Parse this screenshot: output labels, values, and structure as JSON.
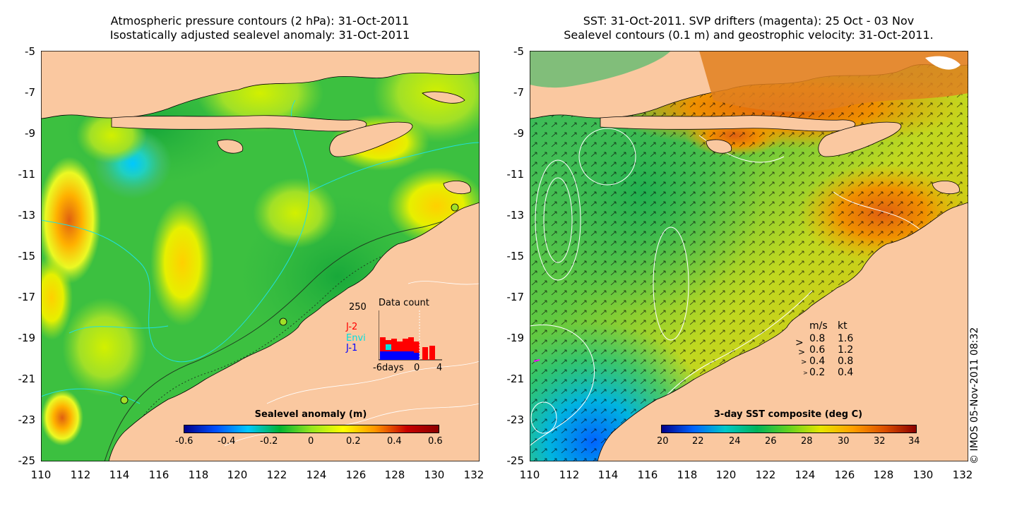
{
  "left_panel": {
    "title_line1": "Atmospheric pressure contours (2 hPa): 31-Oct-2011",
    "title_line2": "Isostatically adjusted sealevel anomaly: 31-Oct-2011",
    "colorbar_label": "Sealevel anomaly (m)",
    "colorbar_ticks": [
      "-0.6",
      "-0.4",
      "-0.2",
      "0",
      "0.2",
      "0.4",
      "0.6"
    ],
    "inset": {
      "title": "Data count",
      "ymax_label": "250",
      "x_labels": [
        "-6days",
        "0",
        "4"
      ],
      "legend": [
        {
          "label": "J-2",
          "color": "#ff0000"
        },
        {
          "label": "Envi",
          "color": "#00e0e0"
        },
        {
          "label": "J-1",
          "color": "#0000ff"
        }
      ]
    }
  },
  "right_panel": {
    "title_line1": "SST: 31-Oct-2011. SVP drifters (magenta): 25 Oct - 03 Nov",
    "title_line2": "Sealevel contours (0.1 m) and geostrophic velocity: 31-Oct-2011.",
    "colorbar_label": "3-day SST composite (deg C)",
    "colorbar_ticks": [
      "20",
      "22",
      "24",
      "26",
      "28",
      "30",
      "32",
      "34"
    ],
    "velocity_legend": {
      "header_ms": "m/s",
      "header_kt": "kt",
      "rows": [
        {
          "ms": "0.8",
          "kt": "1.6"
        },
        {
          "ms": "0.6",
          "kt": "1.2"
        },
        {
          "ms": "0.4",
          "kt": "0.8"
        },
        {
          "ms": "0.2",
          "kt": "0.4"
        }
      ]
    }
  },
  "axes": {
    "y_ticks": [
      "-5",
      "-7",
      "-9",
      "-11",
      "-13",
      "-15",
      "-17",
      "-19",
      "-21",
      "-23",
      "-25"
    ],
    "x_ticks": [
      "110",
      "112",
      "114",
      "116",
      "118",
      "120",
      "122",
      "124",
      "126",
      "128",
      "130",
      "132"
    ]
  },
  "credit": "© IMOS 05-Nov-2011 08:32",
  "colors": {
    "land": "#fac8a0",
    "sla_cmap": [
      "#00008c",
      "#0050ff",
      "#00c8ff",
      "#00b432",
      "#96e61e",
      "#ffff00",
      "#ff9600",
      "#c80000",
      "#8c0000"
    ],
    "sst_cmap": [
      "#00008c",
      "#0064ff",
      "#00c8c8",
      "#00b45a",
      "#64d21e",
      "#e6e600",
      "#ffa000",
      "#dc5000",
      "#8c0000"
    ]
  }
}
